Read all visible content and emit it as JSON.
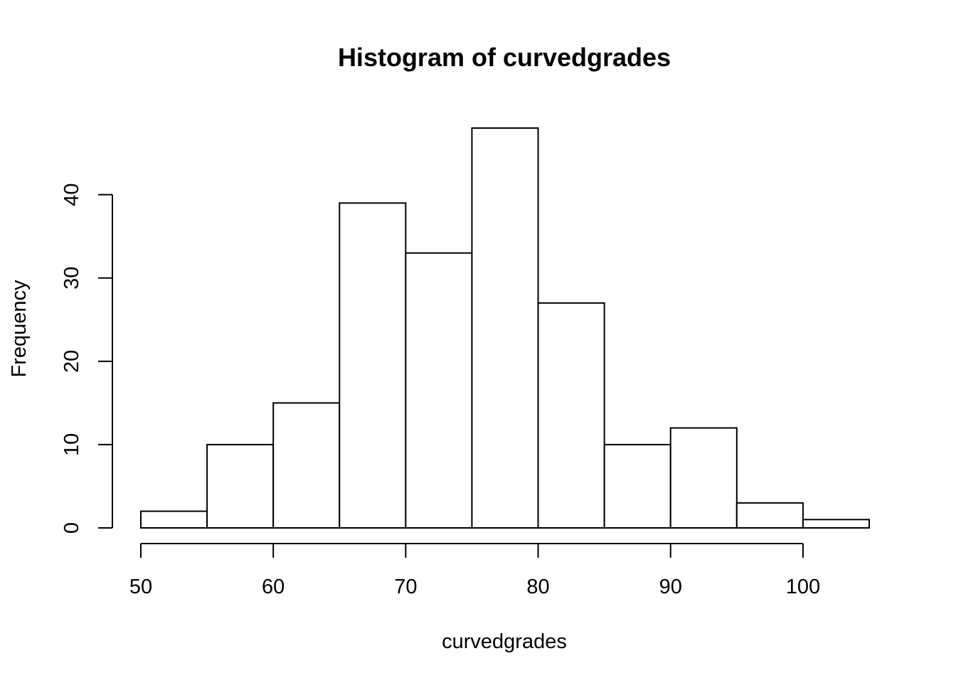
{
  "chart_data": {
    "type": "bar",
    "subtype": "histogram",
    "title": "Histogram of curvedgrades",
    "xlabel": "curvedgrades",
    "ylabel": "Frequency",
    "bins": [
      {
        "x0": 50,
        "x1": 55,
        "count": 2
      },
      {
        "x0": 55,
        "x1": 60,
        "count": 10
      },
      {
        "x0": 60,
        "x1": 65,
        "count": 15
      },
      {
        "x0": 65,
        "x1": 70,
        "count": 39
      },
      {
        "x0": 70,
        "x1": 75,
        "count": 33
      },
      {
        "x0": 75,
        "x1": 80,
        "count": 48
      },
      {
        "x0": 80,
        "x1": 85,
        "count": 27
      },
      {
        "x0": 85,
        "x1": 90,
        "count": 10
      },
      {
        "x0": 90,
        "x1": 95,
        "count": 12
      },
      {
        "x0": 95,
        "x1": 100,
        "count": 3
      },
      {
        "x0": 100,
        "x1": 105,
        "count": 1
      }
    ],
    "xlim": [
      50,
      105
    ],
    "ylim": [
      0,
      48
    ],
    "x_ticks": [
      50,
      60,
      70,
      80,
      90,
      100
    ],
    "x_tick_labels": [
      "50",
      "60",
      "70",
      "80",
      "90",
      "100"
    ],
    "y_ticks": [
      0,
      10,
      20,
      30,
      40
    ],
    "y_tick_labels": [
      "0",
      "10",
      "20",
      "30",
      "40"
    ],
    "grid": false,
    "colors": {
      "bar_fill": "#ffffff",
      "bar_stroke": "#000000",
      "axis": "#000000",
      "background": "#ffffff"
    }
  }
}
